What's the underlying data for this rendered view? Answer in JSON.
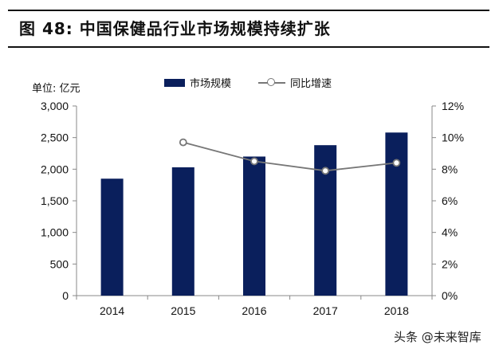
{
  "title": "图 48:  中国保健品行业市场规模持续扩张",
  "unit_label": "单位: 亿元",
  "legend": {
    "bar_label": "市场规模",
    "line_label": "同比增速"
  },
  "watermark": "头条 @未来智库",
  "colors": {
    "bar": "#0a1f5c",
    "line": "#777777",
    "axis": "#888888"
  },
  "chart_data": {
    "type": "bar",
    "categories": [
      "2014",
      "2015",
      "2016",
      "2017",
      "2018"
    ],
    "series": [
      {
        "name": "市场规模",
        "type": "bar",
        "axis": "left",
        "values": [
          1850,
          2030,
          2200,
          2380,
          2580
        ]
      },
      {
        "name": "同比增速",
        "type": "line",
        "axis": "right",
        "values": [
          null,
          9.7,
          8.5,
          7.9,
          8.4
        ]
      }
    ],
    "ylim": [
      0,
      3000
    ],
    "y2lim": [
      0,
      12
    ],
    "yticks": [
      "0",
      "500",
      "1,000",
      "1,500",
      "2,000",
      "2,500",
      "3,000"
    ],
    "y2ticks": [
      "0%",
      "2%",
      "4%",
      "6%",
      "8%",
      "10%",
      "12%"
    ],
    "grid": false,
    "legend_position": "top-center"
  }
}
